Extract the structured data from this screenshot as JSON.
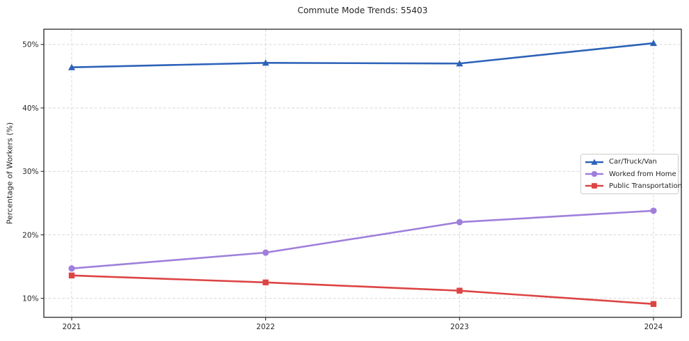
{
  "title": "Commute Mode Trends: 55403",
  "chart_data": {
    "type": "line",
    "title": "Commute Mode Trends: 55403",
    "xlabel": "",
    "ylabel": "Percentage of Workers (%)",
    "x": [
      2021,
      2022,
      2023,
      2024
    ],
    "x_tick_labels": [
      "2021",
      "2022",
      "2023",
      "2024"
    ],
    "y_ticks": [
      10,
      20,
      30,
      40,
      50
    ],
    "y_tick_labels": [
      "10%",
      "20%",
      "30%",
      "40%",
      "50%"
    ],
    "ylim": [
      7.0,
      52.4
    ],
    "grid": true,
    "grid_style": "dashed",
    "legend_position": "right-center",
    "series": [
      {
        "name": "Car/Truck/Van",
        "color": "#2d62b8",
        "marker": "triangle",
        "values": [
          46.4,
          47.1,
          47.0,
          50.2
        ]
      },
      {
        "name": "Worked from Home",
        "color": "#9f7fdb",
        "marker": "circle",
        "values": [
          14.7,
          17.2,
          22.0,
          23.8
        ]
      },
      {
        "name": "Public Transportation",
        "color": "#dd4444",
        "marker": "square",
        "values": [
          13.6,
          12.5,
          11.2,
          9.1
        ]
      }
    ]
  }
}
